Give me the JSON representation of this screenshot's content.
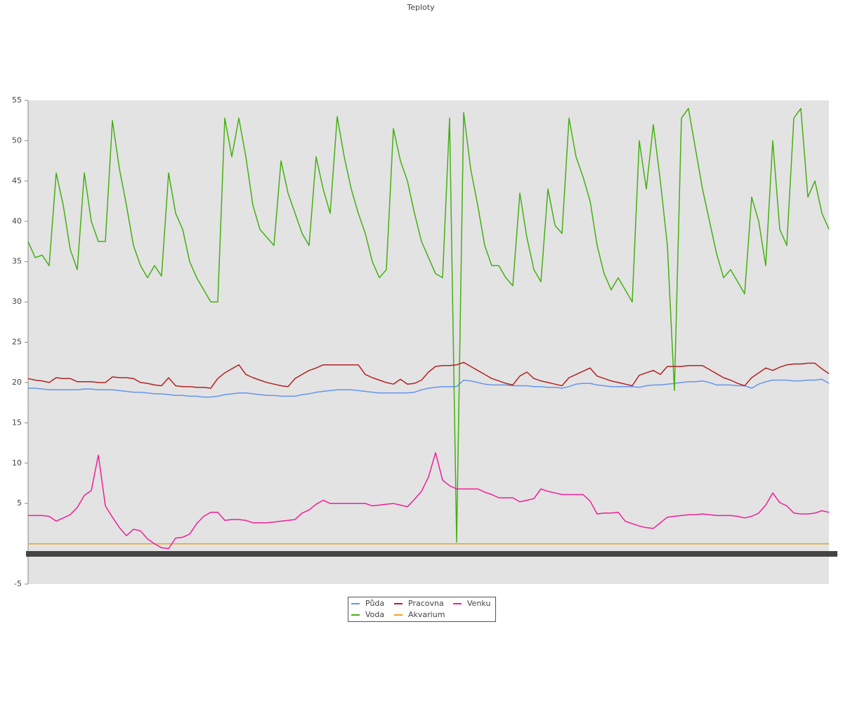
{
  "chart_data": {
    "type": "line",
    "title": "Teploty",
    "ylim": [
      -5,
      55
    ],
    "yticks": [
      -5,
      5,
      10,
      15,
      20,
      25,
      30,
      35,
      40,
      45,
      50,
      55
    ],
    "legend": "bottom",
    "series": [
      {
        "name": "Půda",
        "color": "#6495ed",
        "values": [
          19.3,
          19.3,
          19.2,
          19.1,
          19.1,
          19.1,
          19.1,
          19.1,
          19.2,
          19.2,
          19.1,
          19.1,
          19.1,
          19.0,
          18.9,
          18.8,
          18.8,
          18.7,
          18.6,
          18.6,
          18.5,
          18.4,
          18.4,
          18.3,
          18.3,
          18.2,
          18.2,
          18.3,
          18.5,
          18.6,
          18.7,
          18.7,
          18.6,
          18.5,
          18.4,
          18.4,
          18.3,
          18.3,
          18.3,
          18.5,
          18.6,
          18.8,
          18.9,
          19.0,
          19.1,
          19.1,
          19.1,
          19.0,
          18.9,
          18.8,
          18.7,
          18.7,
          18.7,
          18.7,
          18.7,
          18.8,
          19.1,
          19.3,
          19.4,
          19.5,
          19.5,
          19.5,
          20.3,
          20.2,
          20.0,
          19.8,
          19.7,
          19.7,
          19.7,
          19.6,
          19.6,
          19.6,
          19.5,
          19.5,
          19.4,
          19.4,
          19.3,
          19.5,
          19.8,
          19.9,
          19.9,
          19.7,
          19.6,
          19.5,
          19.5,
          19.5,
          19.5,
          19.4,
          19.6,
          19.7,
          19.7,
          19.8,
          19.9,
          20.0,
          20.1,
          20.1,
          20.2,
          20.0,
          19.7,
          19.7,
          19.7,
          19.6,
          19.6,
          19.3,
          19.8,
          20.1,
          20.3,
          20.3,
          20.3,
          20.2,
          20.2,
          20.3,
          20.3,
          20.4,
          19.9
        ]
      },
      {
        "name": "Voda",
        "color": "#44b012",
        "values": [
          37.5,
          35.5,
          35.8,
          34.5,
          46,
          42,
          36.5,
          34,
          46,
          40,
          37.5,
          37.5,
          52.5,
          46.5,
          42,
          37,
          34.5,
          33,
          34.5,
          33.2,
          46,
          41,
          39,
          35,
          33,
          31.5,
          30,
          30,
          52.8,
          48,
          52.8,
          48,
          42,
          39,
          38,
          37,
          47.5,
          43.5,
          41,
          38.5,
          37,
          48,
          44,
          41,
          53,
          48,
          44,
          41,
          38.5,
          35,
          33,
          34,
          51.5,
          47.5,
          45,
          41,
          37.5,
          35.5,
          33.5,
          33,
          52.8,
          0.2,
          53.5,
          46.5,
          42,
          37,
          34.5,
          34.5,
          33,
          32,
          43.5,
          38,
          34,
          32.5,
          44,
          39.5,
          38.5,
          52.8,
          48,
          45.5,
          42.5,
          37,
          33.5,
          31.5,
          33,
          31.5,
          30,
          50,
          44,
          52,
          45,
          37,
          19,
          52.8,
          54,
          49,
          44,
          40,
          36,
          33,
          34,
          32.5,
          31,
          43,
          40,
          34.5,
          50,
          39,
          37,
          52.8,
          54,
          43,
          45,
          41,
          39
        ]
      },
      {
        "name": "Pracovna",
        "color": "#b22222",
        "values": [
          20.5,
          20.3,
          20.2,
          20.0,
          20.6,
          20.5,
          20.5,
          20.1,
          20.1,
          20.1,
          20.0,
          20.0,
          20.7,
          20.6,
          20.6,
          20.5,
          20.0,
          19.9,
          19.7,
          19.6,
          20.6,
          19.6,
          19.5,
          19.5,
          19.4,
          19.4,
          19.3,
          20.5,
          21.2,
          21.7,
          22.2,
          21.0,
          20.6,
          20.3,
          20.0,
          19.8,
          19.6,
          19.5,
          20.5,
          21.0,
          21.5,
          21.8,
          22.2,
          22.2,
          22.2,
          22.2,
          22.2,
          22.2,
          21.0,
          20.6,
          20.3,
          20.0,
          19.8,
          20.4,
          19.8,
          19.9,
          20.3,
          21.3,
          22.0,
          22.1,
          22.1,
          22.2,
          22.5,
          22.0,
          21.5,
          21.0,
          20.5,
          20.2,
          19.9,
          19.7,
          20.8,
          21.3,
          20.5,
          20.2,
          20.0,
          19.8,
          19.6,
          20.6,
          21.0,
          21.4,
          21.8,
          20.8,
          20.5,
          20.2,
          20.0,
          19.8,
          19.6,
          20.9,
          21.2,
          21.5,
          21.0,
          22.0,
          22.0,
          22.0,
          22.1,
          22.1,
          22.1,
          21.6,
          21.1,
          20.6,
          20.3,
          19.9,
          19.6,
          20.6,
          21.2,
          21.8,
          21.5,
          21.9,
          22.2,
          22.3,
          22.3,
          22.4,
          22.4,
          21.7,
          21.1
        ]
      },
      {
        "name": "Akvarium",
        "color": "#e8a317",
        "values": [
          0,
          0,
          0,
          0,
          0,
          0,
          0,
          0,
          0,
          0,
          0,
          0,
          0,
          0,
          0,
          0,
          0,
          0,
          0,
          0,
          0,
          0,
          0,
          0,
          0,
          0,
          0,
          0,
          0,
          0,
          0,
          0,
          0,
          0,
          0,
          0,
          0,
          0,
          0,
          0,
          0,
          0,
          0,
          0,
          0,
          0,
          0,
          0,
          0,
          0,
          0,
          0,
          0,
          0,
          0,
          0,
          0,
          0,
          0,
          0,
          0,
          0,
          0,
          0,
          0,
          0,
          0,
          0,
          0,
          0,
          0,
          0,
          0,
          0,
          0,
          0,
          0,
          0,
          0,
          0,
          0,
          0,
          0,
          0,
          0,
          0,
          0,
          0,
          0,
          0,
          0,
          0,
          0,
          0,
          0,
          0,
          0,
          0,
          0,
          0,
          0,
          0,
          0,
          0,
          0,
          0,
          0,
          0,
          0,
          0,
          0,
          0,
          0,
          0,
          0
        ]
      },
      {
        "name": "Venku",
        "color": "#ee1f9a",
        "values": [
          3.5,
          3.5,
          3.5,
          3.4,
          2.8,
          3.2,
          3.6,
          4.5,
          6.0,
          6.6,
          11.0,
          4.7,
          3.3,
          2.0,
          1.0,
          1.8,
          1.6,
          0.6,
          0.0,
          -0.5,
          -0.6,
          0.7,
          0.8,
          1.2,
          2.5,
          3.4,
          3.9,
          3.9,
          2.9,
          3.0,
          3.0,
          2.9,
          2.6,
          2.6,
          2.6,
          2.7,
          2.8,
          2.9,
          3.0,
          3.8,
          4.2,
          4.9,
          5.4,
          5.0,
          5.0,
          5.0,
          5.0,
          5.0,
          5.0,
          4.7,
          4.8,
          4.9,
          5.0,
          4.8,
          4.6,
          5.5,
          6.5,
          8.3,
          11.3,
          7.9,
          7.2,
          6.8,
          6.8,
          6.8,
          6.8,
          6.4,
          6.1,
          5.7,
          5.7,
          5.7,
          5.2,
          5.4,
          5.6,
          6.8,
          6.5,
          6.3,
          6.1,
          6.1,
          6.1,
          6.1,
          5.3,
          3.7,
          3.8,
          3.8,
          3.9,
          2.8,
          2.5,
          2.2,
          2.0,
          1.9,
          2.6,
          3.3,
          3.4,
          3.5,
          3.6,
          3.6,
          3.7,
          3.6,
          3.5,
          3.5,
          3.5,
          3.4,
          3.2,
          3.4,
          3.8,
          4.8,
          6.3,
          5.1,
          4.7,
          3.8,
          3.7,
          3.7,
          3.8,
          4.1,
          3.9
        ]
      }
    ]
  }
}
